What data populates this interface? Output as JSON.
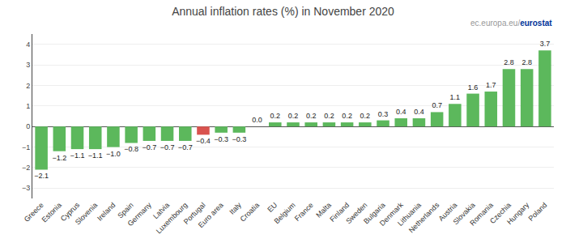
{
  "chart_data": {
    "type": "bar",
    "title": "Annual inflation rates (%) in November 2020",
    "categories": [
      "Greece",
      "Estonia",
      "Cyprus",
      "Slovenia",
      "Ireland",
      "Spain",
      "Germany",
      "Latvia",
      "Luxembourg",
      "Portugal",
      "Euro area",
      "Italy",
      "Croatia",
      "EU",
      "Belgium",
      "France",
      "Malta",
      "Finland",
      "Sweden",
      "Bulgaria",
      "Denmark",
      "Lithuania",
      "Netherlands",
      "Austria",
      "Slovakia",
      "Romania",
      "Czechia",
      "Hungary",
      "Poland"
    ],
    "values": [
      -2.1,
      -1.2,
      -1.1,
      -1.1,
      -1.0,
      -0.8,
      -0.7,
      -0.7,
      -0.7,
      -0.4,
      -0.3,
      -0.3,
      0.0,
      0.2,
      0.2,
      0.2,
      0.2,
      0.2,
      0.2,
      0.3,
      0.4,
      0.4,
      0.7,
      1.1,
      1.6,
      1.7,
      2.8,
      2.8,
      3.7
    ],
    "value_labels": [
      "−2.1",
      "−1.2",
      "−1.1",
      "−1.1",
      "−1.0",
      "−0.8",
      "−0.7",
      "−0.7",
      "−0.7",
      "−0.4",
      "−0.3",
      "−0.3",
      "0.0",
      "0.2",
      "0.2",
      "0.2",
      "0.2",
      "0.2",
      "0.2",
      "0.3",
      "0.4",
      "0.4",
      "0.7",
      "1.1",
      "1.6",
      "1.7",
      "2.8",
      "2.8",
      "3.7"
    ],
    "colors": [
      "#5cb85c",
      "#5cb85c",
      "#5cb85c",
      "#5cb85c",
      "#5cb85c",
      "#5cb85c",
      "#5cb85c",
      "#5cb85c",
      "#5cb85c",
      "#d9534f",
      "#5cb85c",
      "#5cb85c",
      "#5bafd6",
      "#5cb85c",
      "#5cb85c",
      "#5cb85c",
      "#5cb85c",
      "#5cb85c",
      "#5cb85c",
      "#5cb85c",
      "#5cb85c",
      "#5cb85c",
      "#5cb85c",
      "#5cb85c",
      "#5cb85c",
      "#5cb85c",
      "#5cb85c",
      "#5cb85c",
      "#5cb85c"
    ],
    "ylim": [
      -3.5,
      4.5
    ],
    "yticks": [
      {
        "value": -3,
        "label": "−3"
      },
      {
        "value": -2,
        "label": "−2"
      },
      {
        "value": -1,
        "label": "−1"
      },
      0,
      1,
      2,
      3,
      4
    ],
    "grid": true,
    "data_labels": true,
    "annotations": [
      {
        "text": "ec.europa.eu/",
        "color": "#999999"
      },
      {
        "text": "eurostat",
        "color": "#003399"
      }
    ]
  }
}
